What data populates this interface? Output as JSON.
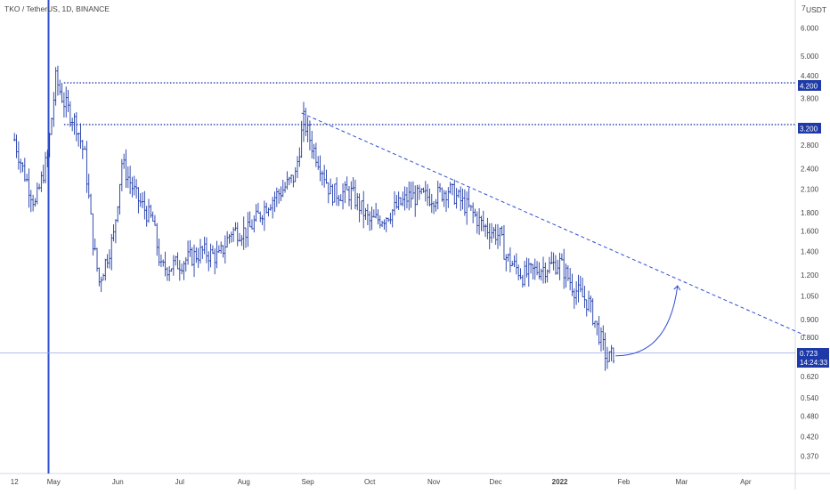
{
  "header": {
    "title": "TKO / TetherUS, 1D, BINANCE"
  },
  "price_axis": {
    "currency": "USDT",
    "top_label": "7",
    "ticks": [
      "6.000",
      "5.000",
      "4.400",
      "3.800",
      "2.800",
      "2.400",
      "2.100",
      "1.800",
      "1.600",
      "1.400",
      "1.200",
      "1.050",
      "0.900",
      "0.800",
      "0.620",
      "0.540",
      "0.480",
      "0.420",
      "0.370"
    ]
  },
  "time_axis": {
    "ticks": [
      "12",
      "May",
      "Jun",
      "Jul",
      "Aug",
      "Sep",
      "Oct",
      "Nov",
      "Dec",
      "2022",
      "Feb",
      "Mar",
      "Apr"
    ]
  },
  "badges": {
    "level_high": "4.200",
    "level_mid": "3.200",
    "last_price": "0.723",
    "countdown": "14:24:33"
  },
  "colors": {
    "accent": "#1e3aa8",
    "line": "#2f4fd0",
    "grid_line": "#9aa8e6",
    "text": "#444444",
    "badge_text": "#ffffff"
  },
  "chart_data": {
    "type": "ohlc",
    "symbol": "TKO / TetherUS",
    "interval": "1D",
    "exchange": "BINANCE",
    "y_scale": "log",
    "ylim": [
      0.33,
      7.2
    ],
    "x_range": [
      "2021-04-05",
      "2022-04-25"
    ],
    "price_points": [
      [
        "2021-04-12",
        2.9
      ],
      [
        "2021-04-16",
        2.4
      ],
      [
        "2021-04-22",
        1.9
      ],
      [
        "2021-04-28",
        2.6
      ],
      [
        "2021-05-02",
        4.3
      ],
      [
        "2021-05-06",
        3.7
      ],
      [
        "2021-05-12",
        3.2
      ],
      [
        "2021-05-16",
        2.6
      ],
      [
        "2021-05-20",
        1.5
      ],
      [
        "2021-05-23",
        1.15
      ],
      [
        "2021-05-30",
        1.55
      ],
      [
        "2021-06-03",
        2.5
      ],
      [
        "2021-06-10",
        2.0
      ],
      [
        "2021-06-18",
        1.7
      ],
      [
        "2021-06-22",
        1.25
      ],
      [
        "2021-07-01",
        1.3
      ],
      [
        "2021-07-12",
        1.4
      ],
      [
        "2021-07-20",
        1.35
      ],
      [
        "2021-07-26",
        1.6
      ],
      [
        "2021-08-03",
        1.6
      ],
      [
        "2021-08-12",
        1.9
      ],
      [
        "2021-08-20",
        2.1
      ],
      [
        "2021-08-26",
        2.3
      ],
      [
        "2021-08-30",
        3.3
      ],
      [
        "2021-09-03",
        2.8
      ],
      [
        "2021-09-08",
        2.4
      ],
      [
        "2021-09-12",
        2.05
      ],
      [
        "2021-09-22",
        2.05
      ],
      [
        "2021-10-01",
        1.7
      ],
      [
        "2021-10-08",
        1.75
      ],
      [
        "2021-10-20",
        2.0
      ],
      [
        "2021-11-01",
        2.0
      ],
      [
        "2021-11-08",
        2.1
      ],
      [
        "2021-11-18",
        1.85
      ],
      [
        "2021-11-25",
        1.65
      ],
      [
        "2021-12-03",
        1.55
      ],
      [
        "2021-12-06",
        1.35
      ],
      [
        "2021-12-14",
        1.2
      ],
      [
        "2021-12-22",
        1.25
      ],
      [
        "2022-01-01",
        1.3
      ],
      [
        "2022-01-08",
        1.1
      ],
      [
        "2022-01-15",
        1.0
      ],
      [
        "2022-01-20",
        0.82
      ],
      [
        "2022-01-24",
        0.69
      ],
      [
        "2022-01-27",
        0.72
      ]
    ],
    "horizontal_levels": [
      4.2,
      3.2,
      0.723
    ],
    "trendline": {
      "from": [
        "2021-08-29",
        3.45
      ],
      "to": [
        "2022-04-30",
        0.81
      ],
      "style": "dashed"
    },
    "projection_arrow": {
      "from": [
        "2022-01-28",
        0.71
      ],
      "to": [
        "2022-02-27",
        1.12
      ]
    },
    "last_price": 0.723
  }
}
